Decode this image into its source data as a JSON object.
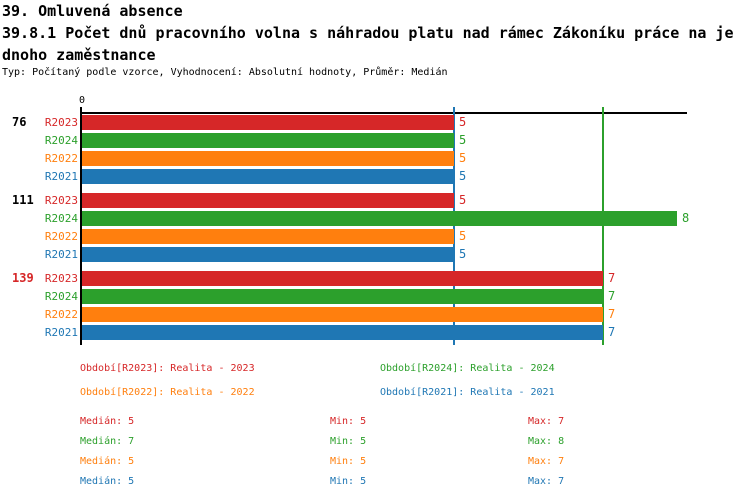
{
  "header": {
    "title": "39. Omluvená absence",
    "subtitle_line1": "39.8.1 Počet dnů pracovního volna s náhradou platu nad rámec Zákoníku práce na je",
    "subtitle_line2": "dnoho zaměstnance",
    "meta": "Typ: Počítaný podle vzorce, Vyhodnocení: Absolutní hodnoty, Průměr: Medián"
  },
  "chart": {
    "zero_tick": "0"
  },
  "chart_data": {
    "type": "bar",
    "orientation": "horizontal",
    "x_axis": {
      "min": 0,
      "max": 8.15,
      "tick_labels": [
        "0"
      ],
      "grid": false
    },
    "series_order": [
      "R2023",
      "R2024",
      "R2022",
      "R2021"
    ],
    "series_colors": {
      "R2023": "#d62728",
      "R2024": "#2ca02c",
      "R2022": "#ff7f0e",
      "R2021": "#1f77b4"
    },
    "groups": [
      {
        "label": "76",
        "label_color": "#000000",
        "values": {
          "R2023": 5,
          "R2024": 5,
          "R2022": 5,
          "R2021": 5
        }
      },
      {
        "label": "111",
        "label_color": "#000000",
        "values": {
          "R2023": 5,
          "R2024": 8,
          "R2022": 5,
          "R2021": 5
        }
      },
      {
        "label": "139",
        "label_color": "#d62728",
        "values": {
          "R2023": 7,
          "R2024": 7,
          "R2022": 7,
          "R2021": 7
        }
      }
    ],
    "reference_lines": [
      {
        "value": 5,
        "color": "#1f77b4"
      },
      {
        "value": 7,
        "color": "#2ca02c"
      }
    ]
  },
  "legend": {
    "items": [
      {
        "series": "R2023",
        "label": "Období[R2023]: Realita - 2023",
        "color": "#d62728"
      },
      {
        "series": "R2024",
        "label": "Období[R2024]: Realita - 2024",
        "color": "#2ca02c"
      },
      {
        "series": "R2022",
        "label": "Období[R2022]: Realita - 2022",
        "color": "#ff7f0e"
      },
      {
        "series": "R2021",
        "label": "Období[R2021]: Realita - 2021",
        "color": "#1f77b4"
      }
    ]
  },
  "stats": {
    "rows": [
      {
        "series": "R2023",
        "color": "#d62728",
        "median": "Medián: 5",
        "min": "Min: 5",
        "max": "Max: 7"
      },
      {
        "series": "R2024",
        "color": "#2ca02c",
        "median": "Medián: 7",
        "min": "Min: 5",
        "max": "Max: 8"
      },
      {
        "series": "R2022",
        "color": "#ff7f0e",
        "median": "Medián: 5",
        "min": "Min: 5",
        "max": "Max: 7"
      },
      {
        "series": "R2021",
        "color": "#1f77b4",
        "median": "Medián: 5",
        "min": "Min: 5",
        "max": "Max: 7"
      }
    ]
  }
}
